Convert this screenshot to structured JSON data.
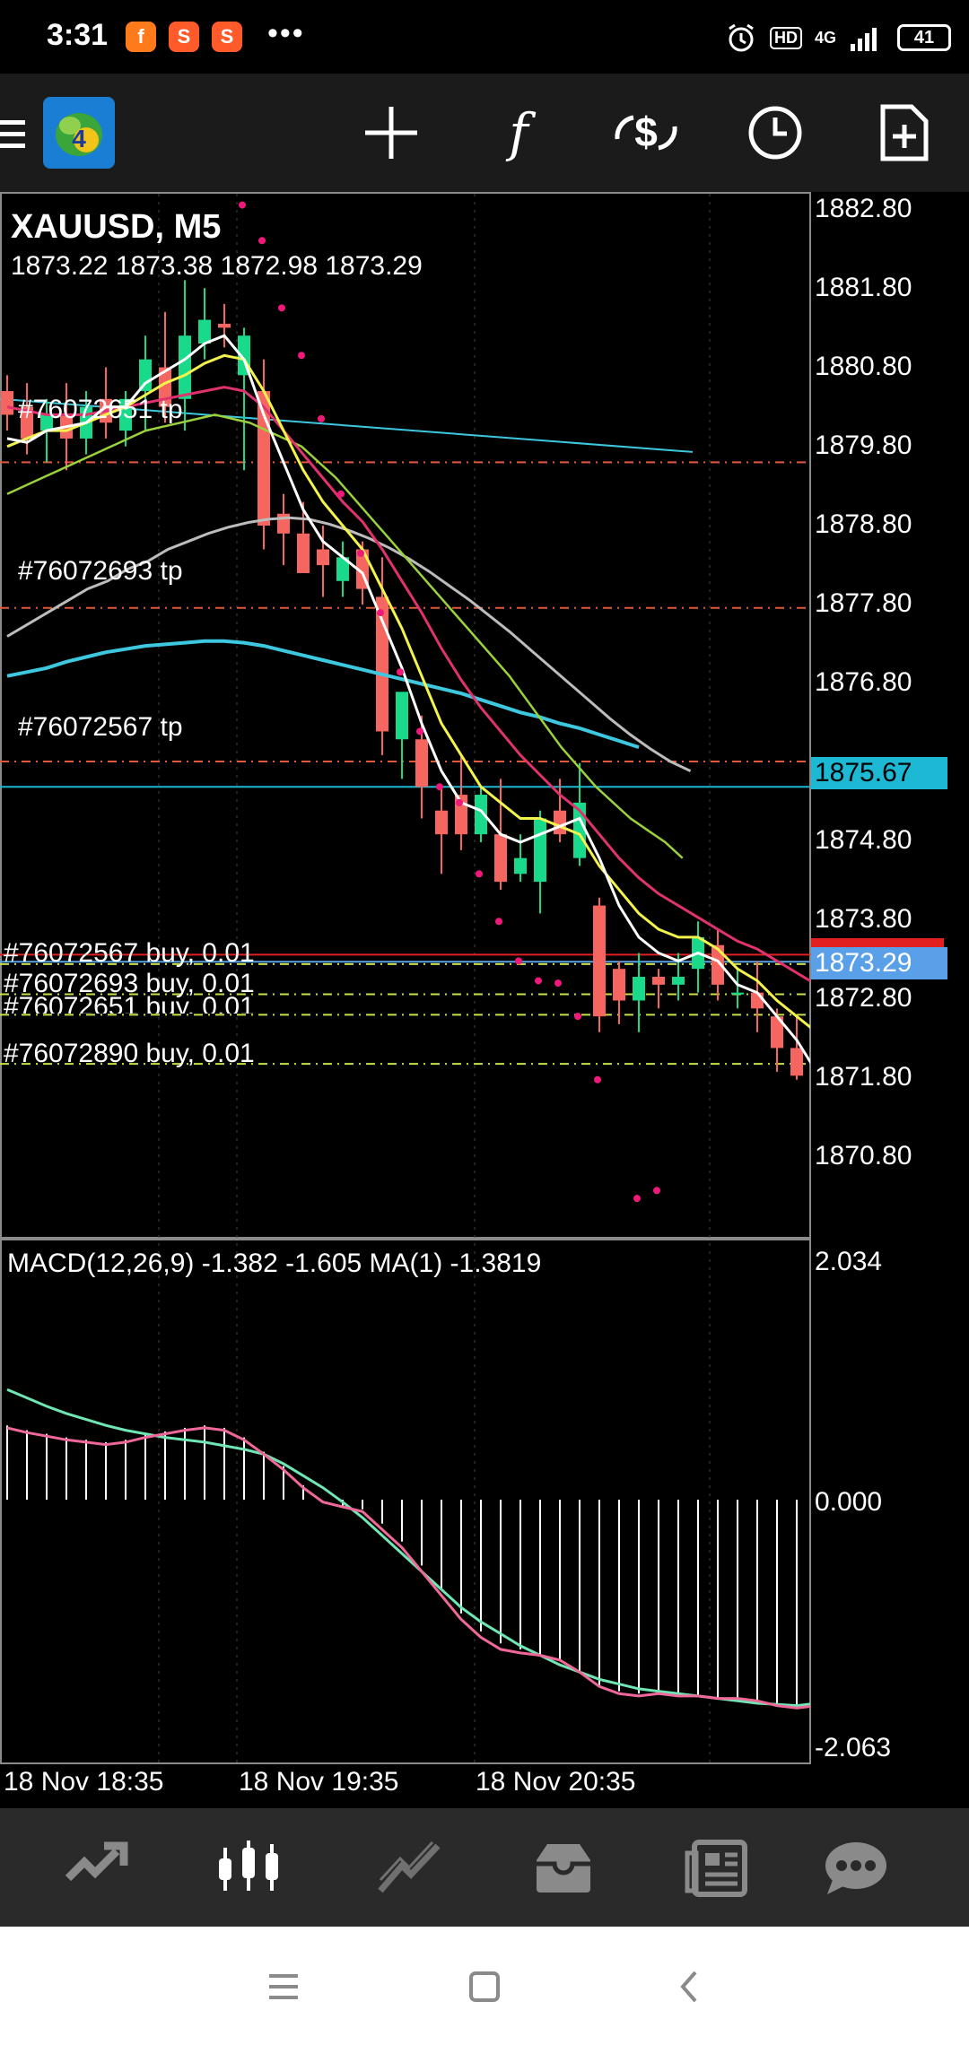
{
  "status_bar": {
    "time": "3:31",
    "notifications": [
      "f",
      "S",
      "S"
    ],
    "more": "•••",
    "network": "4G",
    "hd": "HD",
    "battery": "41"
  },
  "toolbar": {
    "icons": [
      "metatrader4-logo-icon",
      "crosshair-icon",
      "indicators-icon",
      "trade-icon",
      "timeframe-clock-icon",
      "new-order-icon"
    ],
    "indicators_glyph": "f"
  },
  "chart": {
    "symbol_title": "XAUUSD, M5",
    "ohlc": "1873.22 1873.38 1872.98 1873.29",
    "price_ticks": [
      "1882.80",
      "1881.80",
      "1880.80",
      "1879.80",
      "1878.80",
      "1877.80",
      "1876.80",
      "1874.80",
      "1873.80",
      "1872.80",
      "1871.80",
      "1870.80"
    ],
    "price_tag_blue": "1875.67",
    "price_tag_current": "1873.29",
    "order_lines": [
      {
        "label": "#76072651 tp",
        "kind": "tp"
      },
      {
        "label": "#76072693 tp",
        "kind": "tp"
      },
      {
        "label": "#76072567 tp",
        "kind": "tp"
      },
      {
        "label": "#76072567 buy, 0.01",
        "kind": "buy"
      },
      {
        "label": "#76072693 buy, 0.01",
        "kind": "buy"
      },
      {
        "label": "#76072651 buy, 0.01",
        "kind": "buy"
      },
      {
        "label": "#76072890 buy, 0.01",
        "kind": "buy"
      }
    ],
    "colors": {
      "bull": "#19d98b",
      "bear": "#f4665f",
      "ma_white": "#ffffff",
      "ma_yellow": "#f3f34c",
      "ma_pink": "#e0326e",
      "ma_green": "#9bd13b",
      "ma_gray": "#bcbcbc",
      "ma_cyan": "#3ec8e0",
      "psar": "#f0197a",
      "price_tag_blue": "#1cb8d4",
      "price_tag_current": "#5aa0e8"
    }
  },
  "macd": {
    "label": "MACD(12,26,9) -1.382 -1.605 MA(1) -1.3819",
    "ticks": [
      "2.034",
      "0.000",
      "-2.063"
    ]
  },
  "time_axis": [
    "18 Nov 18:35",
    "18 Nov 19:35",
    "18 Nov 20:35"
  ],
  "bottom_nav": {
    "items": [
      "quotes-icon",
      "chart-icon",
      "trade-icon",
      "history-icon",
      "news-icon",
      "messages-icon"
    ],
    "active": "chart-icon"
  },
  "system_nav": [
    "menu-icon",
    "home-icon",
    "back-icon"
  ]
}
